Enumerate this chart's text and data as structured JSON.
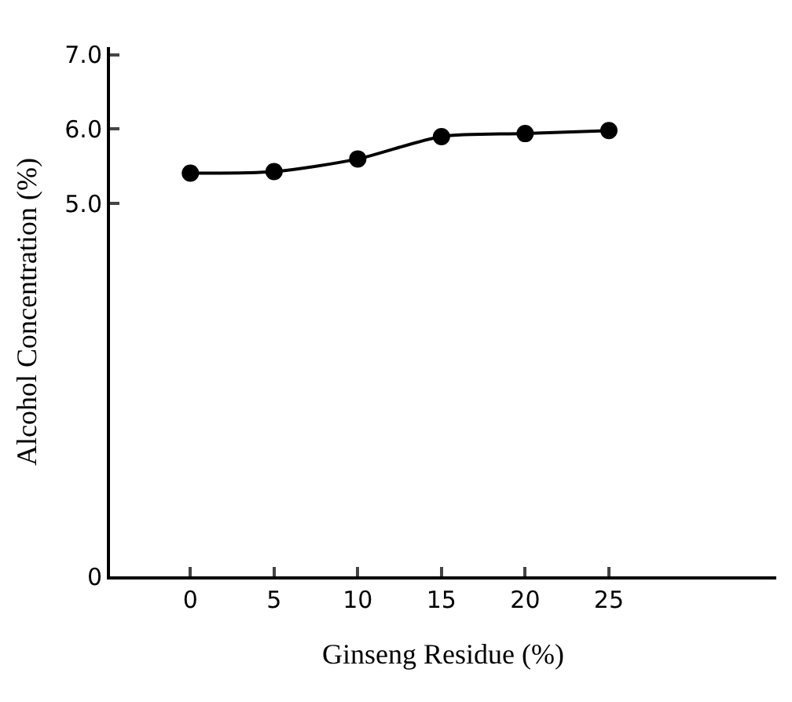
{
  "chart_data": {
    "type": "line",
    "xlabel": "Ginseng Residue (%)",
    "ylabel": "Alcohol Concentration (%)",
    "x": [
      0,
      5,
      10,
      15,
      20,
      25
    ],
    "series": [
      {
        "color": "#000000",
        "values": [
          5.41,
          5.43,
          5.6,
          5.9,
          5.94,
          5.98
        ]
      }
    ],
    "xlim": [
      -4.8,
      35
    ],
    "xticks": [
      0,
      5,
      10,
      15,
      20,
      25
    ],
    "ylim": [
      0,
      7.1
    ],
    "yticks": [
      0,
      {
        "value": 5,
        "label": "5.0"
      },
      {
        "value": 6,
        "label": "6.0"
      },
      {
        "value": 7,
        "label": "7.0"
      }
    ],
    "grid": false,
    "legend": false,
    "marker": "circle",
    "line_style": "solid"
  }
}
